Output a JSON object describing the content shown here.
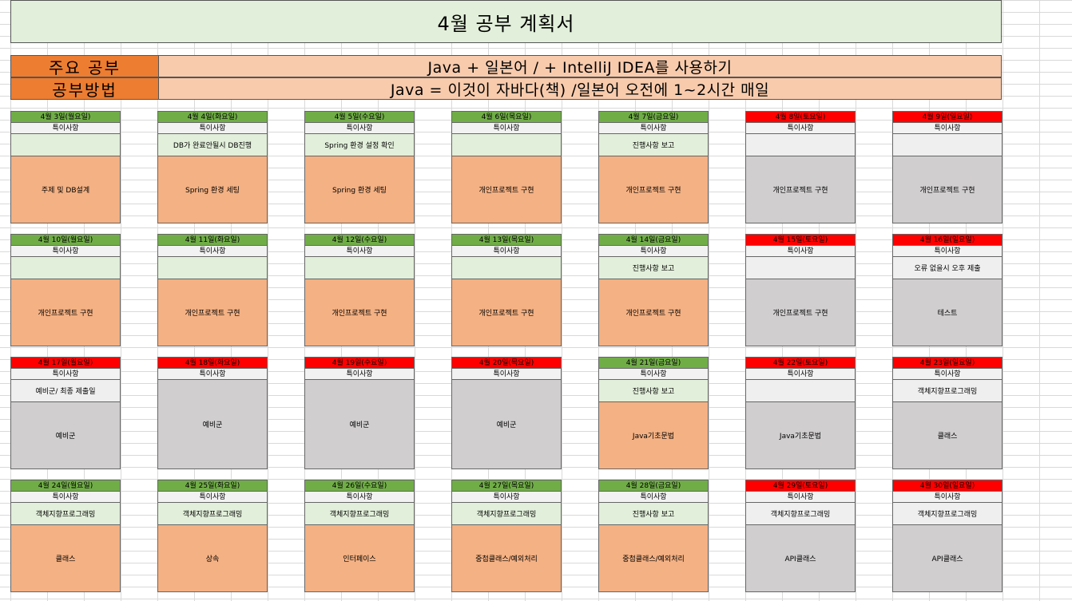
{
  "sheet": {
    "title": "4월 공부 계획서",
    "info": [
      {
        "label": "주요 공부",
        "value": "Java + 일본어 / + IntelliJ IDEA를 사용하기"
      },
      {
        "label": "공부방법",
        "value": "Java = 이것이 자바다(책) /일본어 오전에 1~2시간 매일"
      }
    ],
    "memo_header": "특이사항",
    "weeks": [
      [
        {
          "date": "4월 3일(월요일)",
          "memo": "",
          "task": "주제 및 DB설계"
        },
        {
          "date": "4월 4일(화요일)",
          "memo": "DB가 완료안될시  DB진행",
          "task": "Spring 환경 세팅"
        },
        {
          "date": "4월 5일(수요일)",
          "memo": "Spring 환경 설정 확인",
          "task": "Spring 환경 세팅"
        },
        {
          "date": "4월 6일(목요일)",
          "memo": "",
          "task": "개인프로젝트 구현"
        },
        {
          "date": "4월 7일(금요일)",
          "memo": "진행사항 보고",
          "task": "개인프로젝트 구현"
        },
        {
          "date": "4월 8일(토요일)",
          "memo": "",
          "task": "개인프로젝트 구현"
        },
        {
          "date": "4월 9일(일요일)",
          "memo": "",
          "task": "개인프로젝트 구현"
        }
      ],
      [
        {
          "date": "4월 10일(월요일)",
          "memo": "",
          "task": "개인프로젝트 구현"
        },
        {
          "date": "4월 11일(화요일)",
          "memo": "",
          "task": "개인프로젝트 구현"
        },
        {
          "date": "4월 12일(수요일)",
          "memo": "",
          "task": "개인프로젝트 구현"
        },
        {
          "date": "4월 13일(목요일)",
          "memo": "",
          "task": "개인프로젝트 구현"
        },
        {
          "date": "4월 14일(금요일)",
          "memo": "진행사항 보고",
          "task": "개인프로젝트 구현"
        },
        {
          "date": "4월 15일(토요일)",
          "memo": "",
          "task": "개인프로젝트 구현"
        },
        {
          "date": "4월 16일(일요일)",
          "memo": "오류 없을시 오후 제출",
          "task": "테스트"
        }
      ],
      [
        {
          "date": "4월 17일(월요일)",
          "memo": "예비군/ 최종 제출일",
          "task": "예비군"
        },
        {
          "date": "4월 18일(화요일)",
          "memo": "",
          "task": "예비군"
        },
        {
          "date": "4월 19일(수요일)",
          "memo": "",
          "task": "예비군"
        },
        {
          "date": "4월 20일(목요일)",
          "memo": "",
          "task": "예비군"
        },
        {
          "date": "4월 21일(금요일)",
          "memo": "진행사항 보고",
          "task": "Java기초문법"
        },
        {
          "date": "4월 22일(토요일)",
          "memo": "",
          "task": "Java기초문법"
        },
        {
          "date": "4월 23일(일요일)",
          "memo": "객체지향프로그래밍",
          "task": "클래스"
        }
      ],
      [
        {
          "date": "4월 24일(월요일)",
          "memo": "객체지향프로그래밍",
          "task": "클래스"
        },
        {
          "date": "4월 25일(화요일)",
          "memo": "객체지향프로그래밍",
          "task": "상속"
        },
        {
          "date": "4월 26일(수요일)",
          "memo": "객체지향프로그래밍",
          "task": "인터페이스"
        },
        {
          "date": "4월 27일(목요일)",
          "memo": "객체지향프로그래밍",
          "task": "중첩클래스/예외처리"
        },
        {
          "date": "4월 28일(금요일)",
          "memo": "진행사항 보고",
          "task": "중첩클래스/예외처리"
        },
        {
          "date": "4월 29일(토요일)",
          "memo": "객체지향프로그래밍",
          "task": "API클래스"
        },
        {
          "date": "4월 30일(일요일)",
          "memo": "객체지향프로그래밍",
          "task": "API클래스"
        }
      ]
    ]
  }
}
